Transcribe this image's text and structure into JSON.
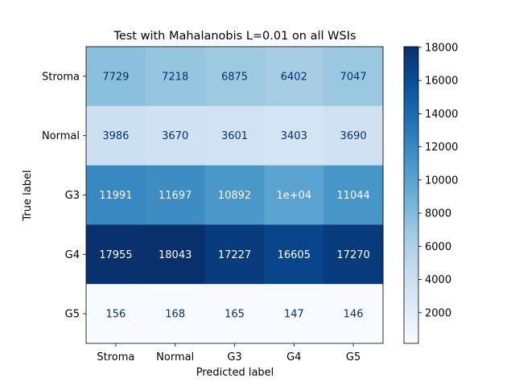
{
  "chart_data": {
    "type": "heatmap",
    "title": "Test with Mahalanobis L=0.01 on all WSIs",
    "xlabel": "Predicted label",
    "ylabel": "True label",
    "x_categories": [
      "Stroma",
      "Normal",
      "G3",
      "G4",
      "G5"
    ],
    "y_categories": [
      "Stroma",
      "Normal",
      "G3",
      "G4",
      "G5"
    ],
    "values": [
      [
        7729,
        7218,
        6875,
        6402,
        7047
      ],
      [
        3986,
        3670,
        3601,
        3403,
        3690
      ],
      [
        11991,
        11697,
        10892,
        10000,
        11044
      ],
      [
        17955,
        18043,
        17227,
        16605,
        17270
      ],
      [
        156,
        168,
        165,
        147,
        146
      ]
    ],
    "cell_labels": [
      [
        "7729",
        "7218",
        "6875",
        "6402",
        "7047"
      ],
      [
        "3986",
        "3670",
        "3601",
        "3403",
        "3690"
      ],
      [
        "11991",
        "11697",
        "10892",
        "1e+04",
        "11044"
      ],
      [
        "17955",
        "18043",
        "17227",
        "16605",
        "17270"
      ],
      [
        "156",
        "168",
        "165",
        "147",
        "146"
      ]
    ],
    "colormap": "Blues",
    "colorbar": {
      "min": 146,
      "max": 18043,
      "ticks": [
        2000,
        4000,
        6000,
        8000,
        10000,
        12000,
        14000,
        16000,
        18000
      ],
      "tick_labels": [
        "2000",
        "4000",
        "6000",
        "8000",
        "10000",
        "12000",
        "14000",
        "16000",
        "18000"
      ]
    },
    "text_colors": {
      "dark": "#08306b",
      "light": "#ffffff"
    },
    "grid": false
  }
}
